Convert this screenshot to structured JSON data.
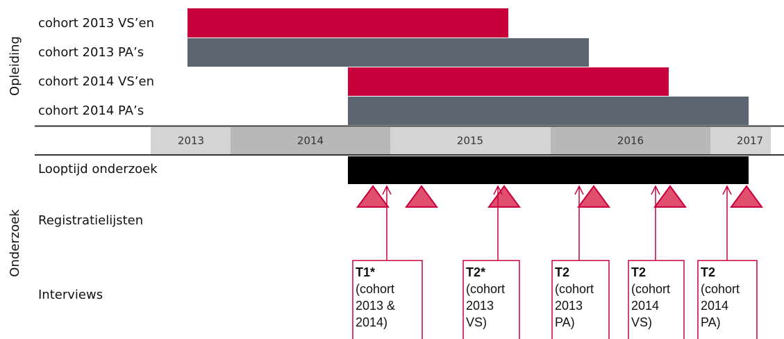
{
  "sections": {
    "training": "Opleiding",
    "research": "Onderzoek"
  },
  "cohorts": [
    "cohort 2013 VS’en",
    "cohort 2013 PA’s",
    "cohort 2014 VS’en",
    "cohort 2014 PA’s"
  ],
  "years": [
    "2013",
    "2014",
    "2015",
    "2016",
    "2017"
  ],
  "rows": {
    "duration": "Looptijd onderzoek",
    "registration": "Registratielijsten",
    "interviews": "Interviews"
  },
  "boxes": [
    {
      "title": "T1*",
      "lines": [
        "(cohort",
        "2013 &",
        "2014)"
      ]
    },
    {
      "title": "T2*",
      "lines": [
        "(cohort",
        "2013",
        "VS)"
      ]
    },
    {
      "title": "T2",
      "lines": [
        "(cohort",
        "2013",
        "PA)"
      ]
    },
    {
      "title": "T2",
      "lines": [
        "(cohort",
        "2014",
        "VS)"
      ]
    },
    {
      "title": "T2",
      "lines": [
        "(cohort",
        "2014",
        "PA)"
      ]
    }
  ]
}
